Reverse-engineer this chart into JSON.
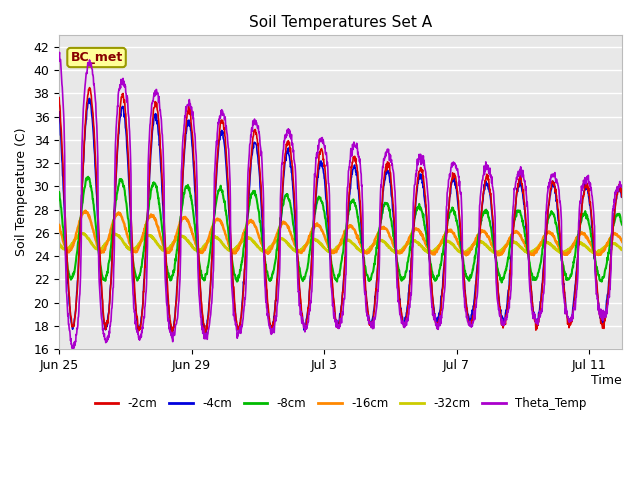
{
  "title": "Soil Temperatures Set A",
  "xlabel": "Time",
  "ylabel": "Soil Temperature (C)",
  "ylim": [
    16,
    43
  ],
  "yticks": [
    16,
    18,
    20,
    22,
    24,
    26,
    28,
    30,
    32,
    34,
    36,
    38,
    40,
    42
  ],
  "plot_bg_color": "#e8e8e8",
  "series": {
    "-2cm": {
      "color": "#dd0000",
      "lw": 1.2
    },
    "-4cm": {
      "color": "#0000dd",
      "lw": 1.2
    },
    "-8cm": {
      "color": "#00bb00",
      "lw": 1.5
    },
    "-16cm": {
      "color": "#ff8800",
      "lw": 1.8
    },
    "-32cm": {
      "color": "#cccc00",
      "lw": 2.0
    },
    "Theta_Temp": {
      "color": "#aa00cc",
      "lw": 1.2
    }
  },
  "annotation": {
    "text": "BC_met",
    "fontsize": 9,
    "color": "#880000",
    "bg": "#ffff99",
    "edgecolor": "#999900"
  },
  "n_days": 17,
  "xtick_labels": [
    "Jun 25",
    "Jun 29",
    "Jul 3",
    "Jul 7",
    "Jul 11"
  ],
  "xtick_positions": [
    0,
    4,
    8,
    12,
    16
  ]
}
